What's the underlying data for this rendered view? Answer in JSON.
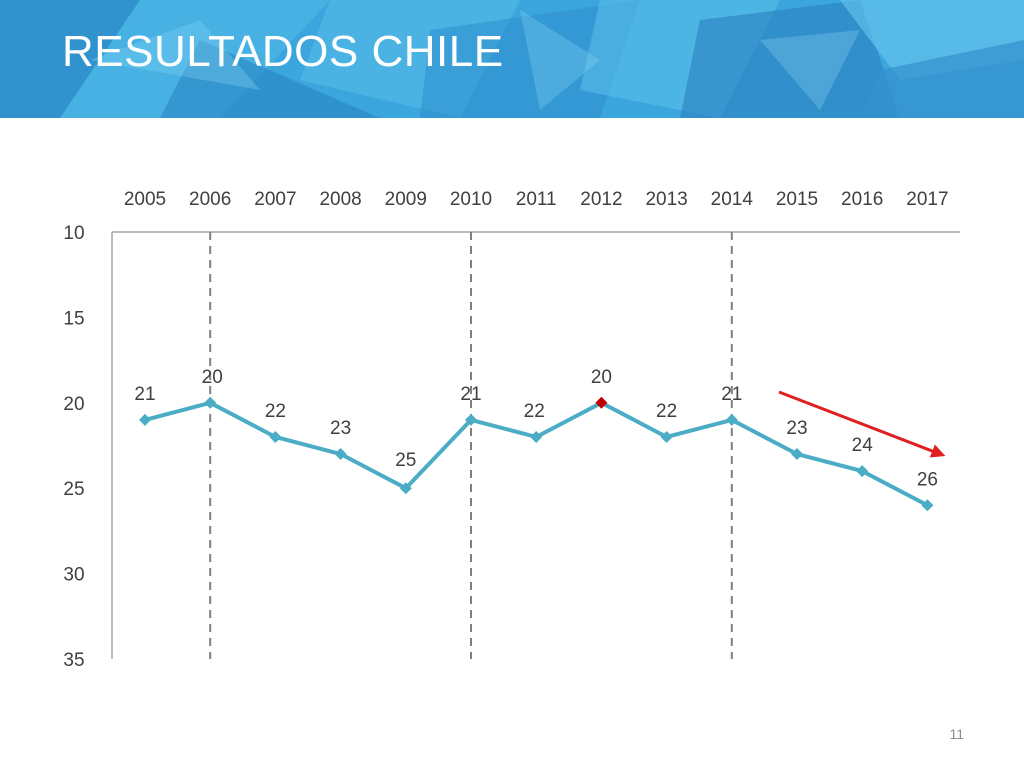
{
  "slide": {
    "title": "RESULTADOS CHILE",
    "page_number": "11"
  },
  "colors": {
    "banner_base": "#3ba6dd",
    "line": "#4bacc6",
    "highlight_marker": "#c00000",
    "trend_arrow": "#e02020",
    "divider": "#808080",
    "axis": "#a6a6a6",
    "text": "#404040"
  },
  "chart_data": {
    "type": "line",
    "title": "",
    "xlabel": "",
    "ylabel": "",
    "x_axis_position": "top",
    "y_axis_reversed": true,
    "ylim": [
      10,
      35
    ],
    "y_ticks": [
      10,
      15,
      20,
      25,
      30,
      35
    ],
    "categories": [
      "2005",
      "2006",
      "2007",
      "2008",
      "2009",
      "2010",
      "2011",
      "2012",
      "2013",
      "2014",
      "2015",
      "2016",
      "2017"
    ],
    "series": [
      {
        "values": [
          21,
          20,
          22,
          23,
          25,
          21,
          22,
          20,
          22,
          21,
          23,
          24,
          26
        ]
      }
    ],
    "highlighted_point": "2012",
    "vertical_dividers_at": [
      "2006",
      "2010",
      "2014"
    ],
    "trend_arrow_over": [
      "2015",
      "2017"
    ],
    "grid": false,
    "legend": "none"
  }
}
